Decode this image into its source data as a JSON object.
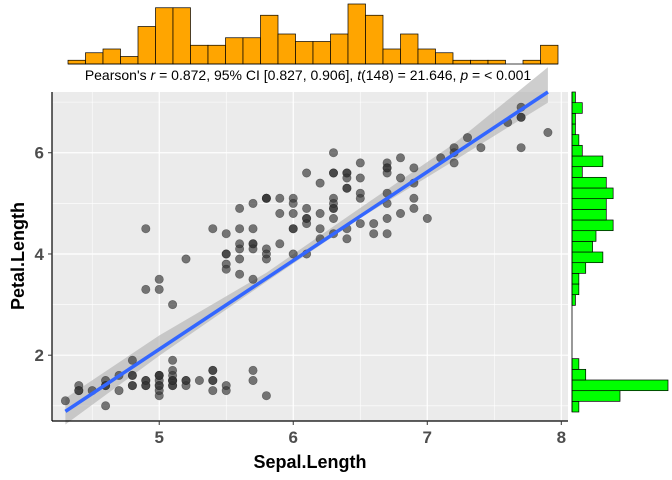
{
  "chart_data": {
    "type": "scatter",
    "subtitle": "Pearson's r = 0.872, 95% CI [0.827, 0.906], t(148) = 21.646, p = < 0.001",
    "subtitle_parts": {
      "p1": "Pearson's ",
      "r": "r",
      "p2": " = 0.872, 95% CI [0.827, 0.906], ",
      "t": "t",
      "p3": "(148) = 21.646, ",
      "p": "p",
      "p4": " = < 0.001"
    },
    "xlabel": "Sepal.Length",
    "ylabel": "Petal.Length",
    "xlim": [
      4.2,
      8.05
    ],
    "ylim": [
      0.7,
      7.2
    ],
    "x_ticks": [
      5,
      6,
      7,
      8
    ],
    "y_ticks": [
      2,
      4,
      6
    ],
    "x_tick_labels": [
      "5",
      "6",
      "7",
      "8"
    ],
    "y_tick_labels": [
      "2",
      "4",
      "6"
    ],
    "grid": true,
    "colors": {
      "panel_bg": "#ebebeb",
      "grid": "#ffffff",
      "point": "#333333",
      "fit_line": "#3366ff",
      "ci_band": "#b3b3b3",
      "x_hist_fill": "#ffa500",
      "y_hist_fill": "#00ff00",
      "hist_border": "#000000"
    },
    "fit_line": {
      "x": [
        4.3,
        7.9
      ],
      "y": [
        0.89,
        7.34
      ]
    },
    "ci_band": {
      "x": [
        4.3,
        5.0,
        5.8,
        6.5,
        7.2,
        7.9
      ],
      "lower": [
        0.63,
        1.99,
        3.45,
        4.71,
        5.84,
        6.99
      ],
      "upper": [
        1.15,
        2.39,
        3.63,
        4.91,
        6.18,
        7.69
      ]
    },
    "series": [
      {
        "x": [
          5.1,
          4.9,
          4.7,
          4.6,
          5.0,
          5.4,
          4.6,
          5.0,
          4.4,
          4.9,
          5.4,
          4.8,
          4.8,
          4.3,
          5.8,
          5.7,
          5.4,
          5.1,
          5.7,
          5.1,
          5.4,
          5.1,
          4.6,
          5.1,
          4.8,
          5.0,
          5.0,
          5.2,
          5.2,
          4.7,
          4.8,
          5.4,
          5.2,
          5.5,
          4.9,
          5.0,
          5.5,
          4.9,
          4.4,
          5.1,
          5.0,
          4.5,
          4.4,
          5.0,
          5.1,
          4.8,
          5.1,
          4.6,
          5.3,
          5.0,
          7.0,
          6.4,
          6.9,
          5.5,
          6.5,
          5.7,
          6.3,
          4.9,
          6.6,
          5.2,
          5.0,
          5.9,
          6.0,
          6.1,
          5.6,
          6.7,
          5.6,
          5.8,
          6.2,
          5.6,
          5.9,
          6.1,
          6.3,
          6.1,
          6.4,
          6.6,
          6.8,
          6.7,
          6.0,
          5.7,
          5.5,
          5.5,
          5.8,
          6.0,
          5.4,
          6.0,
          6.7,
          6.3,
          5.6,
          5.5,
          5.5,
          6.1,
          5.8,
          5.0,
          5.6,
          5.7,
          5.7,
          6.2,
          5.1,
          5.7,
          6.3,
          5.8,
          7.1,
          6.3,
          6.5,
          7.6,
          4.9,
          7.3,
          6.7,
          7.2,
          6.5,
          6.4,
          6.8,
          5.7,
          5.8,
          6.4,
          6.5,
          7.7,
          7.7,
          6.0,
          6.9,
          5.6,
          7.7,
          6.3,
          6.7,
          7.2,
          6.2,
          6.1,
          6.4,
          7.2,
          7.4,
          7.9,
          6.4,
          6.3,
          6.1,
          7.7,
          6.3,
          6.4,
          6.0,
          6.9,
          6.7,
          6.9,
          5.8,
          6.8,
          6.7,
          6.7,
          6.3,
          6.5,
          6.2,
          5.9
        ],
        "y": [
          1.4,
          1.4,
          1.3,
          1.5,
          1.4,
          1.7,
          1.4,
          1.5,
          1.4,
          1.5,
          1.5,
          1.6,
          1.4,
          1.1,
          1.2,
          1.5,
          1.3,
          1.4,
          1.7,
          1.5,
          1.7,
          1.5,
          1.0,
          1.7,
          1.9,
          1.6,
          1.6,
          1.5,
          1.4,
          1.6,
          1.6,
          1.5,
          1.5,
          1.4,
          1.5,
          1.2,
          1.3,
          1.4,
          1.3,
          1.5,
          1.3,
          1.3,
          1.3,
          1.6,
          1.9,
          1.4,
          1.6,
          1.4,
          1.5,
          1.4,
          4.7,
          4.5,
          4.9,
          4.0,
          4.6,
          4.5,
          4.7,
          3.3,
          4.6,
          3.9,
          3.5,
          4.2,
          4.0,
          4.7,
          3.6,
          4.4,
          4.5,
          4.1,
          4.5,
          3.9,
          4.8,
          4.0,
          4.9,
          4.7,
          4.3,
          4.4,
          4.8,
          5.0,
          4.5,
          3.5,
          3.8,
          3.7,
          3.9,
          5.1,
          4.5,
          4.5,
          4.7,
          4.4,
          4.1,
          4.0,
          4.4,
          4.6,
          4.0,
          3.3,
          4.2,
          4.2,
          4.2,
          4.3,
          3.0,
          4.1,
          6.0,
          5.1,
          5.9,
          5.6,
          5.8,
          6.6,
          4.5,
          6.3,
          5.8,
          6.1,
          5.1,
          5.3,
          5.5,
          5.0,
          5.1,
          5.3,
          5.5,
          6.7,
          6.9,
          5.0,
          5.7,
          4.9,
          6.7,
          4.9,
          5.7,
          6.0,
          4.8,
          4.9,
          5.6,
          5.8,
          6.1,
          6.4,
          5.6,
          5.1,
          5.6,
          6.1,
          5.6,
          5.5,
          4.8,
          5.4,
          5.6,
          5.1,
          5.1,
          5.9,
          5.7,
          5.2,
          5.0,
          5.2,
          5.4,
          5.1
        ]
      }
    ],
    "x_marginal_hist": {
      "edges": [
        4.3,
        4.4286,
        4.5571,
        4.6857,
        4.8143,
        4.9429,
        5.0714,
        5.2,
        5.3286,
        5.4571,
        5.5857,
        5.7143,
        5.8429,
        5.9714,
        6.1,
        6.2286,
        6.3571,
        6.4857,
        6.6143,
        6.7429,
        6.8714,
        7.0,
        7.1286,
        7.2571,
        7.3857,
        7.5143,
        7.6429,
        7.7714,
        7.9
      ],
      "counts": [
        1,
        3,
        4,
        2,
        10,
        15,
        15,
        5,
        5,
        7,
        7,
        13,
        8,
        6,
        6,
        8,
        16,
        13,
        4,
        8,
        4,
        3,
        1,
        1,
        1,
        0,
        1,
        5
      ]
    },
    "y_marginal_hist": {
      "edges": [
        1.0,
        1.1967,
        1.3933,
        1.59,
        1.7867,
        1.9833,
        2.18,
        2.3767,
        2.5733,
        2.77,
        2.9667,
        3.1633,
        3.36,
        3.5567,
        3.7533,
        3.95,
        4.1467,
        4.3433,
        4.54,
        4.7367,
        4.9333,
        5.13,
        5.3267,
        5.5233,
        5.72,
        5.9167,
        6.1133,
        6.31,
        6.5067,
        6.7033,
        6.9
      ],
      "counts": [
        2,
        14,
        28,
        4,
        2,
        0,
        0,
        0,
        0,
        0,
        1,
        2,
        2,
        4,
        9,
        6,
        7,
        12,
        10,
        10,
        12,
        10,
        3,
        9,
        3,
        2,
        1,
        1,
        3,
        1
      ]
    }
  }
}
